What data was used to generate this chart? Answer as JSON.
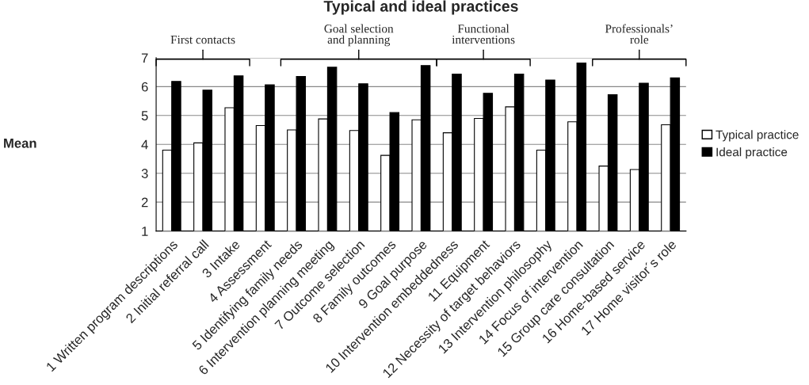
{
  "chart_data": {
    "type": "bar",
    "title": "Typical and ideal practices",
    "ylabel": "Mean",
    "categories": [
      "1 Written program descriptions",
      "2 Initial referral call",
      "3 Intake",
      "4 Assessment",
      "5 Identifying family needs",
      "6 Intervention planning meeting",
      "7 Outcome selection",
      "8 Family outcomes",
      "9 Goal purpose",
      "10 Intervention embeddedness",
      "11 Equipment",
      "12 Necessity of target behaviors",
      "13 Intervention philosophy",
      "14 Focus of intervention",
      "15 Group care consultation",
      "16 Home-based service",
      "17 Home visitor´s role"
    ],
    "series": [
      {
        "name": "Typical practice",
        "color": "#ffffff",
        "values": [
          3.8,
          4.05,
          5.27,
          4.65,
          4.5,
          4.88,
          4.48,
          3.62,
          4.85,
          4.4,
          4.9,
          5.3,
          3.8,
          4.78,
          3.25,
          3.13,
          4.68
        ]
      },
      {
        "name": "Ideal practice",
        "color": "#000000",
        "values": [
          6.18,
          5.88,
          6.37,
          6.06,
          6.35,
          6.67,
          6.1,
          5.1,
          6.73,
          6.43,
          5.77,
          6.43,
          6.23,
          6.82,
          5.72,
          6.12,
          6.3
        ]
      }
    ],
    "ylim": [
      1,
      7
    ],
    "yticks": [
      1,
      2,
      3,
      4,
      5,
      6,
      7
    ],
    "grid": "y",
    "legend": "right",
    "annotations": [
      "First contacts",
      "Goal selection\nand planning",
      "Functional\ninterventions",
      "Professionals’\nrole"
    ]
  }
}
